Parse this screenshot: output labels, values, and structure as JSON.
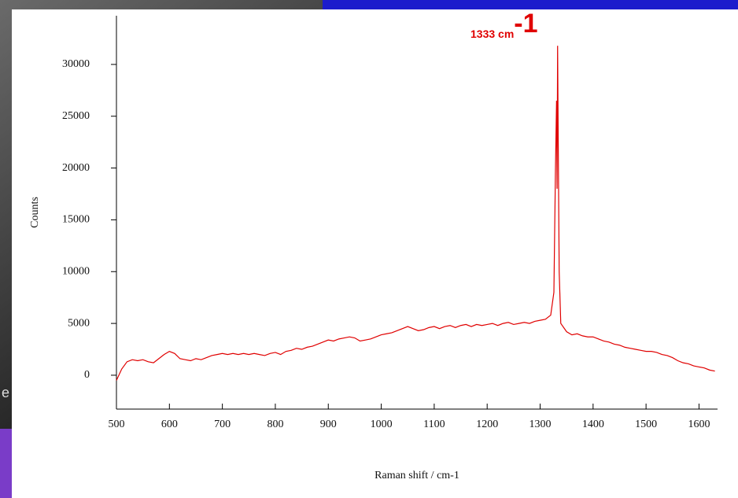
{
  "background_text": "e",
  "chart_data": {
    "type": "line",
    "annotation": "1333 cm",
    "annotation_superscript": "-1",
    "xlabel": "Raman shift / cm-1",
    "ylabel": "Counts",
    "color": "#e00000",
    "x": [
      500,
      510,
      520,
      530,
      540,
      550,
      560,
      570,
      580,
      590,
      600,
      610,
      620,
      630,
      640,
      650,
      660,
      670,
      680,
      690,
      700,
      710,
      720,
      730,
      740,
      750,
      760,
      770,
      780,
      790,
      800,
      810,
      820,
      830,
      840,
      850,
      860,
      870,
      880,
      890,
      900,
      910,
      920,
      930,
      940,
      950,
      960,
      970,
      980,
      990,
      1000,
      1010,
      1020,
      1030,
      1040,
      1050,
      1060,
      1070,
      1080,
      1090,
      1100,
      1110,
      1120,
      1130,
      1140,
      1150,
      1160,
      1170,
      1180,
      1190,
      1200,
      1210,
      1220,
      1230,
      1240,
      1250,
      1260,
      1270,
      1280,
      1290,
      1300,
      1310,
      1320,
      1326,
      1329,
      1331,
      1332,
      1333,
      1334,
      1336,
      1339,
      1350,
      1360,
      1370,
      1380,
      1390,
      1400,
      1410,
      1420,
      1430,
      1440,
      1450,
      1460,
      1470,
      1480,
      1490,
      1500,
      1510,
      1520,
      1530,
      1540,
      1550,
      1560,
      1570,
      1580,
      1590,
      1600,
      1610,
      1620,
      1630
    ],
    "values": [
      -500,
      600,
      1300,
      1500,
      1400,
      1500,
      1300,
      1200,
      1600,
      2000,
      2300,
      2100,
      1600,
      1500,
      1400,
      1600,
      1500,
      1700,
      1900,
      2000,
      2100,
      2000,
      2100,
      2000,
      2100,
      2000,
      2100,
      2000,
      1900,
      2100,
      2200,
      2000,
      2300,
      2400,
      2600,
      2500,
      2700,
      2800,
      3000,
      3200,
      3400,
      3300,
      3500,
      3600,
      3700,
      3600,
      3300,
      3400,
      3500,
      3700,
      3900,
      4000,
      4100,
      4300,
      4500,
      4700,
      4500,
      4300,
      4400,
      4600,
      4700,
      4500,
      4700,
      4800,
      4600,
      4800,
      4900,
      4700,
      4900,
      4800,
      4900,
      5000,
      4800,
      5000,
      5100,
      4900,
      5000,
      5100,
      5000,
      5200,
      5300,
      5400,
      5800,
      8000,
      20000,
      26500,
      18000,
      31800,
      24000,
      10000,
      5000,
      4200,
      3900,
      4000,
      3800,
      3700,
      3700,
      3500,
      3300,
      3200,
      3000,
      2900,
      2700,
      2600,
      2500,
      2400,
      2300,
      2300,
      2200,
      2000,
      1900,
      1700,
      1400,
      1200,
      1100,
      900,
      800,
      700,
      500,
      400
    ],
    "xlim": [
      500,
      1635
    ],
    "ylim": [
      -3270,
      34700
    ],
    "xticks": [
      500,
      600,
      700,
      800,
      900,
      1000,
      1100,
      1200,
      1300,
      1400,
      1500,
      1600
    ],
    "yticks": [
      0,
      5000,
      10000,
      15000,
      20000,
      25000,
      30000
    ]
  }
}
